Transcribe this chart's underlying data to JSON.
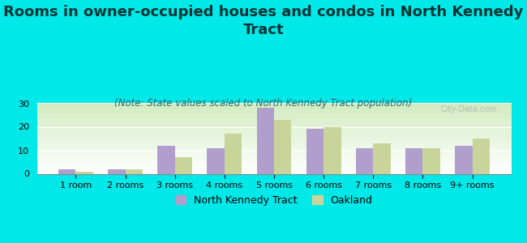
{
  "title": "Rooms in owner-occupied houses and condos in North Kennedy\nTract",
  "subtitle": "(Note: State values scaled to North Kennedy Tract population)",
  "categories": [
    "1 room",
    "2 rooms",
    "3 rooms",
    "4 rooms",
    "5 rooms",
    "6 rooms",
    "7 rooms",
    "8 rooms",
    "9+ rooms"
  ],
  "nkt_values": [
    2,
    2,
    12,
    11,
    28,
    19,
    11,
    11,
    12
  ],
  "oakland_values": [
    1,
    2,
    7,
    17,
    23,
    20,
    13,
    11,
    15
  ],
  "nkt_color": "#b09fcc",
  "oakland_color": "#c8d49a",
  "background_color": "#00e8e8",
  "ylim": [
    0,
    30
  ],
  "yticks": [
    0,
    10,
    20,
    30
  ],
  "bar_width": 0.35,
  "title_fontsize": 13,
  "subtitle_fontsize": 8.5,
  "tick_fontsize": 8,
  "legend_fontsize": 9,
  "watermark": "City-Data.com"
}
